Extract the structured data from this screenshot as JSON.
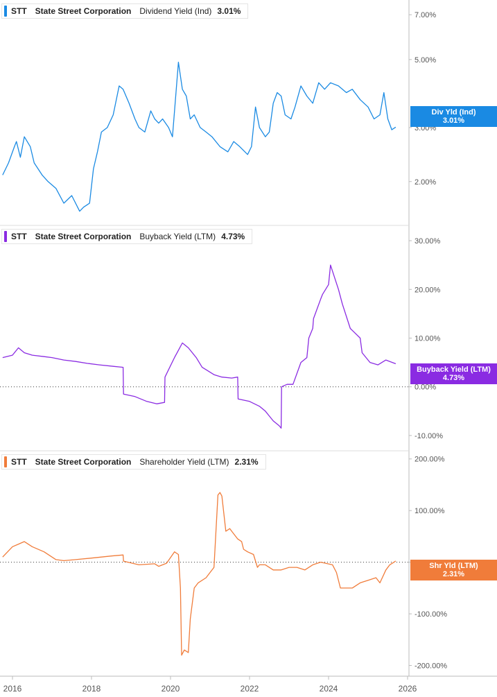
{
  "colors": {
    "div": "#1a8ae3",
    "buyback": "#8a2be2",
    "shareholder": "#f07c3a",
    "axis_text": "#555555",
    "divider": "#dddddd",
    "zero": "#333333"
  },
  "x_axis": {
    "ticks": [
      "2016",
      "2018",
      "2020",
      "2022",
      "2024",
      "2026"
    ],
    "range": [
      2016.0,
      2026.0
    ]
  },
  "legends": [
    {
      "ticker": "STT",
      "name": "State Street Corporation",
      "metric": "Dividend Yield (Ind)",
      "value": "3.01%"
    },
    {
      "ticker": "STT",
      "name": "State Street Corporation",
      "metric": "Buyback Yield (LTM)",
      "value": "4.73%"
    },
    {
      "ticker": "STT",
      "name": "State Street Corporation",
      "metric": "Shareholder Yield (LTM)",
      "value": "2.31%"
    }
  ],
  "tags": [
    {
      "title": "Div Yld (Ind)",
      "value": "3.01%"
    },
    {
      "title": "Buyback Yield (LTM)",
      "value": "4.73%"
    },
    {
      "title": "Shr Yld (LTM)",
      "value": "2.31%"
    }
  ],
  "chart_data": [
    {
      "type": "line",
      "title": "Dividend Yield (Ind)",
      "scale": "log",
      "ylim": [
        1.5,
        7.5
      ],
      "y_ticks": [
        {
          "v": 7.0,
          "label": "7.00%"
        },
        {
          "v": 5.0,
          "label": "5.00%"
        },
        {
          "v": 3.0,
          "label": "3.00%"
        },
        {
          "v": 2.0,
          "label": "2.00%"
        }
      ],
      "series": [
        {
          "name": "Dividend Yield (Ind)",
          "x": [
            2015.75,
            2015.9,
            2016.05,
            2016.1,
            2016.2,
            2016.3,
            2016.45,
            2016.55,
            2016.75,
            2016.9,
            2017.1,
            2017.3,
            2017.5,
            2017.7,
            2017.8,
            2017.95,
            2018.05,
            2018.15,
            2018.25,
            2018.4,
            2018.55,
            2018.7,
            2018.8,
            2018.95,
            2019.1,
            2019.2,
            2019.35,
            2019.5,
            2019.6,
            2019.7,
            2019.8,
            2019.95,
            2020.05,
            2020.2,
            2020.3,
            2020.4,
            2020.5,
            2020.6,
            2020.75,
            2020.9,
            2021.05,
            2021.25,
            2021.45,
            2021.6,
            2021.75,
            2021.95,
            2022.05,
            2022.15,
            2022.25,
            2022.4,
            2022.5,
            2022.6,
            2022.7,
            2022.8,
            2022.9,
            2023.05,
            2023.15,
            2023.3,
            2023.45,
            2023.6,
            2023.75,
            2023.9,
            2024.05,
            2024.25,
            2024.45,
            2024.6,
            2024.8,
            2025.0,
            2025.15,
            2025.3,
            2025.4,
            2025.5,
            2025.6,
            2025.7
          ],
          "y": [
            2.1,
            2.3,
            2.6,
            2.7,
            2.4,
            2.8,
            2.6,
            2.3,
            2.1,
            2.0,
            1.9,
            1.7,
            1.8,
            1.6,
            1.65,
            1.7,
            2.2,
            2.5,
            2.9,
            3.0,
            3.3,
            4.1,
            4.0,
            3.6,
            3.2,
            3.0,
            2.9,
            3.4,
            3.2,
            3.1,
            3.2,
            3.0,
            2.8,
            4.9,
            4.0,
            3.8,
            3.2,
            3.3,
            3.0,
            2.9,
            2.8,
            2.6,
            2.5,
            2.7,
            2.6,
            2.45,
            2.6,
            3.5,
            3.0,
            2.8,
            2.9,
            3.6,
            3.9,
            3.8,
            3.3,
            3.2,
            3.5,
            4.1,
            3.8,
            3.6,
            4.2,
            4.0,
            4.2,
            4.1,
            3.9,
            4.0,
            3.7,
            3.5,
            3.2,
            3.3,
            3.9,
            3.2,
            2.95,
            3.01
          ]
        }
      ]
    },
    {
      "type": "line",
      "title": "Buyback Yield (LTM)",
      "ylim": [
        -12,
        32
      ],
      "y_ticks": [
        {
          "v": 30,
          "label": "30.00%"
        },
        {
          "v": 20,
          "label": "20.00%"
        },
        {
          "v": 10,
          "label": "10.00%"
        },
        {
          "v": 0,
          "label": "0.00%"
        },
        {
          "v": -10,
          "label": "-10.00%"
        }
      ],
      "series": [
        {
          "name": "Buyback Yield (LTM)",
          "x": [
            2015.75,
            2016.0,
            2016.15,
            2016.3,
            2016.5,
            2016.8,
            2017.0,
            2017.3,
            2017.6,
            2017.9,
            2018.2,
            2018.55,
            2018.8,
            2018.81,
            2019.1,
            2019.4,
            2019.65,
            2019.85,
            2019.86,
            2020.1,
            2020.2,
            2020.3,
            2020.45,
            2020.65,
            2020.8,
            2020.9,
            2021.1,
            2021.3,
            2021.55,
            2021.7,
            2021.71,
            2022.0,
            2022.25,
            2022.4,
            2022.5,
            2022.6,
            2022.75,
            2022.8,
            2022.81,
            2022.95,
            2023.05,
            2023.1,
            2023.3,
            2023.45,
            2023.5,
            2023.6,
            2023.62,
            2023.8,
            2023.85,
            2024.0,
            2024.05,
            2024.25,
            2024.35,
            2024.55,
            2024.8,
            2024.85,
            2025.05,
            2025.25,
            2025.45,
            2025.7
          ],
          "y": [
            6,
            6.5,
            8,
            7,
            6.5,
            6.2,
            6,
            5.5,
            5.2,
            4.8,
            4.5,
            4.2,
            4,
            -1.5,
            -2,
            -3,
            -3.5,
            -3.2,
            2,
            6,
            7.5,
            9,
            8,
            6,
            4,
            3.5,
            2.5,
            2,
            1.8,
            2,
            -2.5,
            -3,
            -4,
            -5,
            -6,
            -7,
            -8,
            -8.5,
            0,
            0.5,
            0.5,
            0.5,
            5,
            6,
            10,
            12,
            14,
            18,
            19,
            21,
            25,
            20,
            17,
            12,
            10,
            7,
            5,
            4.5,
            5.5,
            4.73
          ]
        }
      ]
    },
    {
      "type": "line",
      "title": "Shareholder Yield (LTM)",
      "ylim": [
        -210,
        205
      ],
      "y_ticks": [
        {
          "v": 200,
          "label": "200.00%"
        },
        {
          "v": 100,
          "label": "100.00%"
        },
        {
          "v": 0,
          "label": "0.00%"
        },
        {
          "v": -100,
          "label": "-100.00%"
        },
        {
          "v": -200,
          "label": "-200.00%"
        }
      ],
      "series": [
        {
          "name": "Shareholder Yield (LTM)",
          "x": [
            2015.75,
            2016.0,
            2016.15,
            2016.3,
            2016.5,
            2016.8,
            2017.1,
            2017.3,
            2017.6,
            2018.0,
            2018.5,
            2018.8,
            2018.81,
            2019.2,
            2019.6,
            2019.7,
            2019.9,
            2020.1,
            2020.2,
            2020.25,
            2020.28,
            2020.35,
            2020.45,
            2020.5,
            2020.6,
            2020.7,
            2020.9,
            2021.0,
            2021.1,
            2021.2,
            2021.25,
            2021.3,
            2021.4,
            2021.5,
            2021.55,
            2021.7,
            2021.8,
            2021.85,
            2021.95,
            2022.1,
            2022.2,
            2022.25,
            2022.4,
            2022.6,
            2022.8,
            2023.0,
            2023.2,
            2023.4,
            2023.6,
            2023.8,
            2024.1,
            2024.2,
            2024.3,
            2024.6,
            2024.8,
            2025.0,
            2025.2,
            2025.3,
            2025.45,
            2025.55,
            2025.7
          ],
          "y": [
            10,
            30,
            35,
            40,
            30,
            20,
            5,
            3,
            5,
            8,
            12,
            14,
            2,
            -5,
            -3,
            -8,
            -2,
            20,
            15,
            -50,
            -180,
            -170,
            -175,
            -110,
            -50,
            -40,
            -30,
            -20,
            -10,
            130,
            135,
            128,
            60,
            65,
            60,
            45,
            40,
            25,
            20,
            15,
            -10,
            -5,
            -5,
            -15,
            -15,
            -10,
            -10,
            -15,
            -5,
            0,
            -5,
            -20,
            -50,
            -50,
            -40,
            -35,
            -30,
            -40,
            -15,
            -5,
            2.31
          ]
        }
      ]
    }
  ]
}
